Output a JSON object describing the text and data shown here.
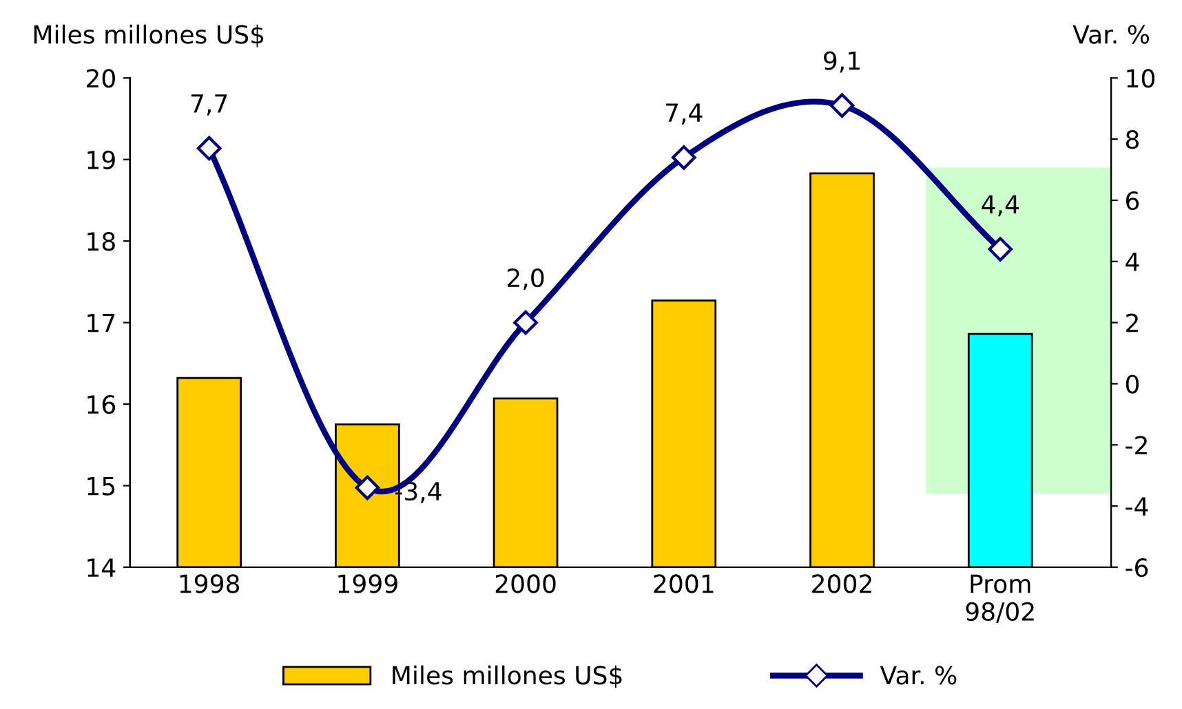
{
  "chart_data": {
    "type": "bar",
    "categories": [
      "1998",
      "1999",
      "2000",
      "2001",
      "2002",
      "Prom\n98/02"
    ],
    "ylabel": "Miles millones US$",
    "y2label": "Var. %",
    "ylim": [
      14,
      20
    ],
    "yticks": [
      14,
      15,
      16,
      17,
      18,
      19,
      20
    ],
    "y2lim": [
      -6,
      10
    ],
    "y2ticks": [
      -6,
      -4,
      -2,
      0,
      2,
      4,
      6,
      8,
      10
    ],
    "series": [
      {
        "name": "Miles millones US$",
        "color": "#ffcc00",
        "colors": [
          "#ffcc00",
          "#ffcc00",
          "#ffcc00",
          "#ffcc00",
          "#ffcc00",
          "#00ffff"
        ],
        "values": [
          16.32,
          15.75,
          16.07,
          17.27,
          18.83,
          16.86
        ]
      },
      {
        "name": "Var. %",
        "type": "line",
        "axis": "y2",
        "color": "#000080",
        "marker": "diamond",
        "line_style": "solid",
        "values": [
          7.7,
          -3.4,
          2.0,
          7.4,
          9.1,
          4.4
        ],
        "value_labels": [
          "7,7",
          "-3,4",
          "2,0",
          "7,4",
          "9,1",
          "4,4"
        ]
      }
    ],
    "grid": false,
    "legend": "bottom"
  }
}
